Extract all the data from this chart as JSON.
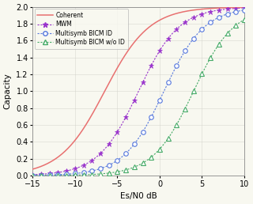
{
  "title": "",
  "xlabel": "Es/N0 dB",
  "ylabel": "Capacity",
  "xlim": [
    -15,
    10
  ],
  "ylim": [
    0,
    2
  ],
  "yticks": [
    0,
    0.2,
    0.4,
    0.6,
    0.8,
    1.0,
    1.2,
    1.4,
    1.6,
    1.8,
    2.0
  ],
  "xticks": [
    -15,
    -10,
    -5,
    0,
    5,
    10
  ],
  "coherent_color": "#e87070",
  "mwm_color": "#9933cc",
  "bicm_id_color": "#5577dd",
  "bicm_wo_id_color": "#44aa66",
  "bg_color": "#f8f8f0",
  "figsize": [
    3.2,
    2.58
  ],
  "dpi": 100,
  "coherent_x0": -6.5,
  "coherent_k": 0.38,
  "mwm_x0": -2.5,
  "mwm_k": 0.42,
  "bicm_id_x0": 0.5,
  "bicm_id_k": 0.42,
  "bicm_wo_id_x0": 4.0,
  "bicm_wo_id_k": 0.42
}
